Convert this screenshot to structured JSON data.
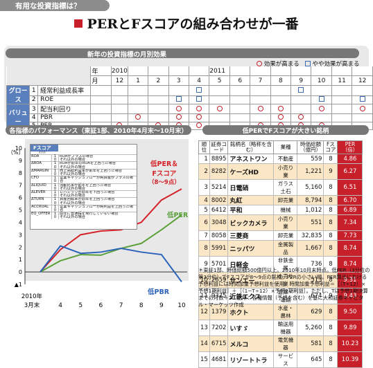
{
  "header": {
    "tag": "有用な投資指標は？",
    "title": "PERとFスコアの組み合わせが一番"
  },
  "monthly": {
    "title": "新年の投資指標の月別効果",
    "legend_high": "効果が高まる",
    "legend_mid": "やや効果が高まる",
    "year_label": "年",
    "month_label": "月",
    "year1": "2010",
    "year2": "2011",
    "months": [
      "12",
      "1",
      "2",
      "3",
      "4",
      "5",
      "6",
      "7",
      "8",
      "9",
      "10",
      "11",
      "12"
    ],
    "groups": [
      {
        "name": "グロース",
        "rows": [
          1,
          2
        ]
      },
      {
        "name": "バリュー",
        "rows": [
          3,
          4,
          5
        ]
      }
    ],
    "rows": [
      {
        "num": "1",
        "name": "経常利益成長率",
        "marks": [
          "",
          "",
          "",
          "",
          "s",
          "",
          "",
          "",
          "",
          "s",
          "",
          "",
          ""
        ]
      },
      {
        "num": "2",
        "name": "ROE",
        "marks": [
          "",
          "",
          "",
          "s",
          "s",
          "",
          "",
          "",
          "",
          "",
          "s",
          "",
          "s"
        ]
      },
      {
        "num": "3",
        "name": "配当利回り",
        "marks": [
          "",
          "",
          "",
          "c",
          "c",
          "c",
          "",
          "c",
          "c",
          "",
          "c",
          "",
          "c"
        ]
      },
      {
        "num": "4",
        "name": "PBR",
        "marks": [
          "",
          "c",
          "",
          "c",
          "c",
          "",
          "",
          "",
          "c",
          "c",
          "",
          "",
          ""
        ]
      },
      {
        "num": "5",
        "name": "PER",
        "marks": [
          "c",
          "",
          "c",
          "c",
          "c",
          "",
          "",
          "c",
          "c",
          "c",
          "c",
          "",
          ""
        ]
      }
    ]
  },
  "performance": {
    "title": "各指標のパフォーマンス（東証1部、2010年4月末〜10月末）",
    "yunit": "（%）",
    "fscore_head": "Fスコア",
    "fscore_sub": "ﾒｿｯﾄﾞ",
    "fscore_rows": [
      {
        "k": "ROA",
        "d": "ROAがプラスの場合／それ以外の場合"
      },
      {
        "k": "ΔROA",
        "d": "ROAが前年のROAを上回った場合／それ以外の場合"
      },
      {
        "k": "ΔMARGIN",
        "d": "売上高総利益率が前年を上回った場合／それ以外の場合"
      },
      {
        "k": "CFO",
        "d": "営業キャッシュフローが純資産がプラスの場合／それ以外の場合"
      },
      {
        "k": "ΔLIQUID",
        "d": "流動比率が前年を上回った場合／それ以外の場合"
      },
      {
        "k": "ΔLEVER",
        "d": "レバレッジが前年を下回った場合／それ以外の場合"
      },
      {
        "k": "ΔTURN",
        "d": "資産回転率が前年を上回った場合／それ以外の場合"
      },
      {
        "k": "ACCRUAL",
        "d": "営業キャッシュフローが純利益を上回った場合／それ以外の場合"
      },
      {
        "k": "EQ_OFFER",
        "d": "前年に普通株を発行していない場合／それ以外の場合"
      }
    ],
    "fscore_score1": "1",
    "fscore_score0": "0",
    "label_combo": "低PER＆Fスコア（8〜9点）",
    "label_combo_1": "低PER＆",
    "label_combo_2": "Fスコア",
    "label_combo_3": "（8〜9点）",
    "label_lowper": "低PER",
    "label_lowpbr": "低PBR",
    "x_first_line1": "2010年",
    "x_first_line2": "3月末"
  },
  "chart_data": {
    "type": "line",
    "title": "各指標のパフォーマンス（東証1部、2010年4月末〜10月末）",
    "ylabel": "（%）",
    "ylim": [
      -1,
      10
    ],
    "yticks": [
      -1,
      0,
      1,
      2,
      3,
      4,
      5,
      6,
      7,
      8,
      9,
      10
    ],
    "categories": [
      "3",
      "4",
      "5",
      "6",
      "7",
      "8",
      "9",
      "10"
    ],
    "series": [
      {
        "name": "低PER＆Fスコア（8〜9点）",
        "color": "#d42128",
        "values": [
          0,
          1.8,
          3.0,
          3.3,
          3.4,
          4.0,
          5.8,
          6.7
        ]
      },
      {
        "name": "低PER",
        "color": "#5aa03a",
        "values": [
          0,
          0.9,
          1.4,
          1.35,
          1.9,
          2.3,
          3.4,
          4.6
        ]
      },
      {
        "name": "低PBR",
        "color": "#2b63b8",
        "values": [
          0,
          2.1,
          1.5,
          1.6,
          1.9,
          1.6,
          1.4,
          -0.8
        ]
      }
    ]
  },
  "ranking": {
    "title": "低PERでFスコアが大きい銘柄",
    "headers": [
      "順位",
      "証券コード",
      "銘柄名（略称を含む）",
      "業種",
      "時価総額（億円）",
      "Fスコア",
      "PER（倍）"
    ],
    "rows": [
      [
        "1",
        "8895",
        "アネストワン",
        "不動産",
        "559",
        "8",
        "4.86"
      ],
      [
        "2",
        "8282",
        "ケーズHD",
        "小売り業",
        "1,221",
        "9",
        "6.27"
      ],
      [
        "3",
        "5214",
        "日電硝",
        "ガラス土石",
        "5,160",
        "8",
        "6.51"
      ],
      [
        "4",
        "8002",
        "丸紅",
        "卸売業",
        "8,794",
        "8",
        "6.70"
      ],
      [
        "5",
        "6412",
        "平和",
        "機械",
        "1,012",
        "8",
        "6.89"
      ],
      [
        "6",
        "3048",
        "ビックカメラ",
        "小売り業",
        "551",
        "8",
        "7.34"
      ],
      [
        "7",
        "8058",
        "三菱商",
        "卸売業",
        "32,835",
        "8",
        "7.73"
      ],
      [
        "8",
        "5991",
        "ニッパツ",
        "金属製品",
        "1,667",
        "8",
        "8.74"
      ],
      [
        "9",
        "5701",
        "日軽金",
        "非鉄金属",
        "736",
        "8",
        "8.74"
      ],
      [
        "10",
        "2659",
        "サンエー",
        "小売り業",
        "513",
        "8",
        "9.31"
      ],
      [
        "11",
        "9375",
        "近鉄エクス",
        "倉庫・運輸",
        "674",
        "9",
        "9.43"
      ],
      [
        "12",
        "1379",
        "ホクト",
        "水産・農林",
        "629",
        "8",
        "9.50"
      ],
      [
        "13",
        "7202",
        "いすゞ",
        "輸送用機器",
        "5,260",
        "8",
        "9.89"
      ],
      [
        "14",
        "6715",
        "メルコ",
        "電気機器",
        "581",
        "8",
        "10.23"
      ],
      [
        "15",
        "4681",
        "リゾートトラ",
        "サービス",
        "645",
        "8",
        "10.39"
      ]
    ],
    "note": "＊東証1部、時価総額500億円以上。2010年10月末時点。低PER（3分位の第3分位）でFスコアが8〜9点の銘柄。PERの小さい順。PER算出における予想利益には時間加重予想利益を使用。時間加重予想利益＝［（T÷12）×予想1期利益］＋［（1−T÷12）×予想2期利益］。ただし、Tは予想1期決算までの月数＋2　出所：各種情報（予想を含む）を基に大和証券キャピタル・マーケッツ作成"
  }
}
